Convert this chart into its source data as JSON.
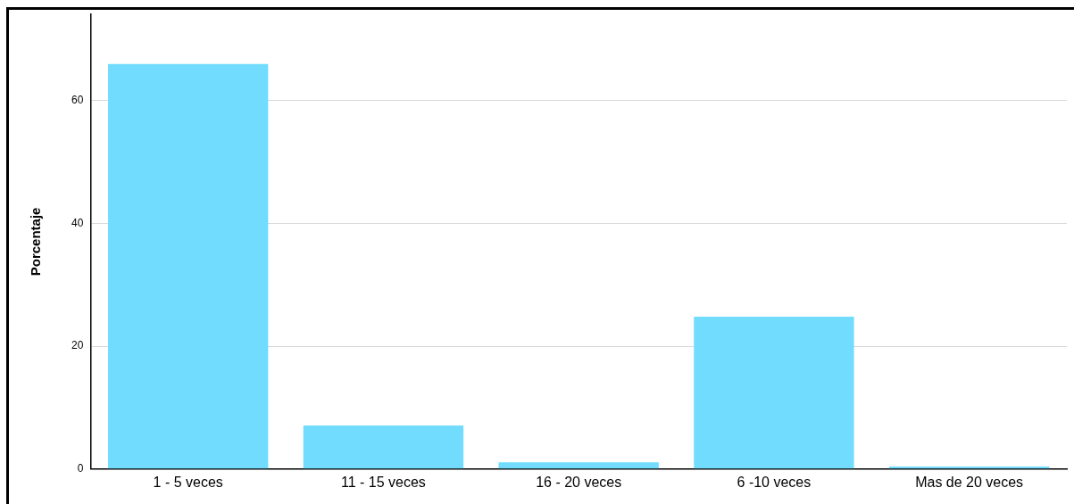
{
  "chart_data": {
    "type": "bar",
    "ylabel": "Porcentaje",
    "categories": [
      "1 - 5 veces",
      "11 - 15 veces",
      "16 - 20 veces",
      "6 -10 veces",
      "Mas de 20 veces"
    ],
    "values": [
      65.9,
      7.1,
      1.1,
      24.8,
      0.4
    ],
    "color": "#72dcff",
    "ylim": [
      0,
      74
    ],
    "yticks": [
      0,
      20,
      40,
      60
    ],
    "grid": "y",
    "legend": false
  }
}
